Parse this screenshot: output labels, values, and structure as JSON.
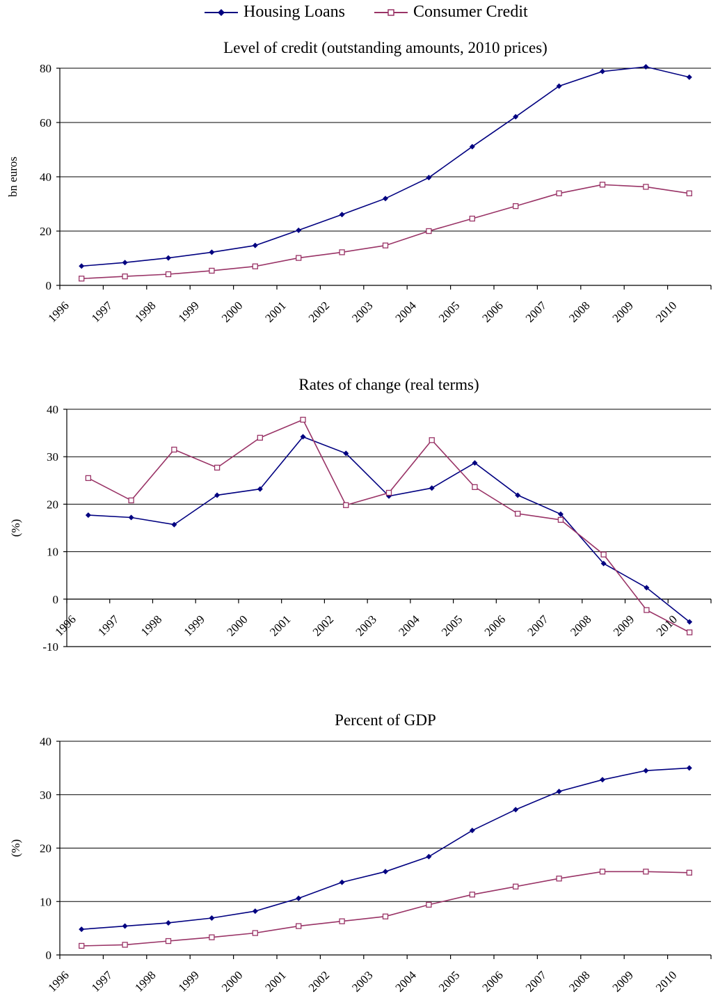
{
  "legend": {
    "items": [
      {
        "label": "Housing Loans",
        "color": "#000080",
        "marker": "diamond"
      },
      {
        "label": "Consumer Credit",
        "color": "#993366",
        "marker": "open-square"
      }
    ]
  },
  "chart_data": [
    {
      "type": "line",
      "title": "Level of credit (outstanding amounts, 2010 prices)",
      "xlabel": "",
      "ylabel": "bn euros",
      "categories": [
        "1996",
        "1997",
        "1998",
        "1999",
        "2000",
        "2001",
        "2002",
        "2003",
        "2004",
        "2005",
        "2006",
        "2007",
        "2008",
        "2009",
        "2010"
      ],
      "ylim": [
        0,
        80
      ],
      "yticks": [
        0,
        20,
        40,
        60,
        80
      ],
      "grid": true,
      "series": [
        {
          "name": "Housing Loans",
          "values": [
            7.1,
            8.4,
            10.1,
            12.2,
            14.7,
            20.3,
            26.1,
            32.0,
            39.7,
            51.1,
            62.1,
            73.4,
            78.8,
            80.5,
            76.7
          ]
        },
        {
          "name": "Consumer Credit",
          "values": [
            2.5,
            3.3,
            4.1,
            5.4,
            7.0,
            10.1,
            12.2,
            14.7,
            20.0,
            24.6,
            29.2,
            33.9,
            37.1,
            36.3,
            33.9
          ]
        }
      ]
    },
    {
      "type": "line",
      "title": "Rates of change (real terms)",
      "xlabel": "",
      "ylabel": "(%)",
      "categories": [
        "1996",
        "1997",
        "1998",
        "1999",
        "2000",
        "2001",
        "2002",
        "2003",
        "2004",
        "2005",
        "2006",
        "2007",
        "2008",
        "2009",
        "2010"
      ],
      "ylim": [
        -10,
        40
      ],
      "yticks": [
        -10,
        0,
        10,
        20,
        30,
        40
      ],
      "grid": true,
      "series": [
        {
          "name": "Housing Loans",
          "values": [
            17.7,
            17.2,
            15.7,
            21.9,
            23.2,
            34.2,
            30.7,
            21.7,
            23.4,
            28.7,
            21.9,
            17.9,
            7.5,
            2.4,
            -4.8
          ]
        },
        {
          "name": "Consumer Credit",
          "values": [
            25.5,
            20.8,
            31.5,
            27.7,
            34.0,
            37.8,
            19.8,
            22.4,
            33.5,
            23.6,
            18.0,
            16.7,
            9.4,
            -2.3,
            -7.0
          ]
        }
      ]
    },
    {
      "type": "line",
      "title": "Percent of GDP",
      "xlabel": "",
      "ylabel": "(%)",
      "categories": [
        "1996",
        "1997",
        "1998",
        "1999",
        "2000",
        "2001",
        "2002",
        "2003",
        "2004",
        "2005",
        "2006",
        "2007",
        "2008",
        "2009",
        "2010"
      ],
      "ylim": [
        0,
        40
      ],
      "yticks": [
        0,
        10,
        20,
        30,
        40
      ],
      "grid": true,
      "series": [
        {
          "name": "Housing Loans",
          "values": [
            4.8,
            5.4,
            6.0,
            6.9,
            8.2,
            10.6,
            13.6,
            15.6,
            18.4,
            23.3,
            27.2,
            30.6,
            32.8,
            34.5,
            35.0
          ]
        },
        {
          "name": "Consumer Credit",
          "values": [
            1.7,
            1.9,
            2.6,
            3.3,
            4.1,
            5.4,
            6.3,
            7.2,
            9.4,
            11.3,
            12.8,
            14.3,
            15.6,
            15.6,
            15.4
          ]
        }
      ]
    }
  ]
}
